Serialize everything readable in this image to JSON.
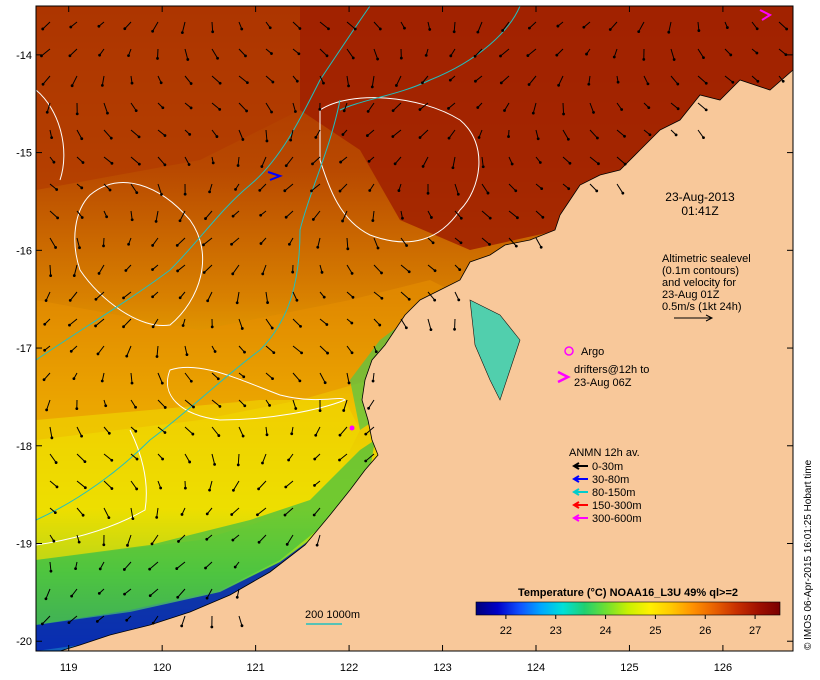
{
  "map": {
    "lon_ticks": [
      "119",
      "120",
      "121",
      "122",
      "123",
      "124",
      "125",
      "126"
    ],
    "lat_ticks": [
      "-14",
      "-15",
      "-16",
      "-17",
      "-18",
      "-19",
      "-20"
    ],
    "lon_range": [
      118.65,
      126.75
    ],
    "lat_range": [
      -20.1,
      -13.5
    ]
  },
  "datetime": {
    "date": "23-Aug-2013",
    "time": "01:41Z"
  },
  "altimetry_note": {
    "lines": [
      "Altimetric sealevel",
      "(0.1m contours)",
      "and velocity for",
      "23-Aug 01Z",
      "0.5m/s (1kt 24h)"
    ]
  },
  "argo_label": "Argo",
  "drifters_note": {
    "line1": "drifters@12h to",
    "line2": "23-Aug 06Z"
  },
  "anmn_legend": {
    "title": "ANMN 12h av.",
    "items": [
      {
        "label": "0-30m",
        "color": "#000000"
      },
      {
        "label": "30-80m",
        "color": "#0000ff"
      },
      {
        "label": "80-150m",
        "color": "#00cccc"
      },
      {
        "label": "150-300m",
        "color": "#ff0000"
      },
      {
        "label": "300-600m",
        "color": "#ff00ff"
      }
    ]
  },
  "isobath_label": "200  1000m",
  "colorbar": {
    "title": "Temperature (°C) NOAA16_L3U 49% ql>=2",
    "ticks": [
      "22",
      "23",
      "24",
      "25",
      "26",
      "27"
    ],
    "range": [
      21.4,
      27.5
    ],
    "colors": [
      "#00007a",
      "#0000c8",
      "#1050ff",
      "#00a8ff",
      "#00e0d8",
      "#20d070",
      "#70e030",
      "#c8f000",
      "#fff000",
      "#ffc800",
      "#ff9000",
      "#e86000",
      "#c83000",
      "#a01000",
      "#7a0000"
    ]
  },
  "credit": "© IMOS 06-Apr-2015 16:01:25 Hobart time",
  "colors": {
    "land": "#f8c89a",
    "warm": "#a82800",
    "coast_line": "#000000",
    "contour": "#ffffff",
    "cyan_isobath": "#20c0c0"
  }
}
